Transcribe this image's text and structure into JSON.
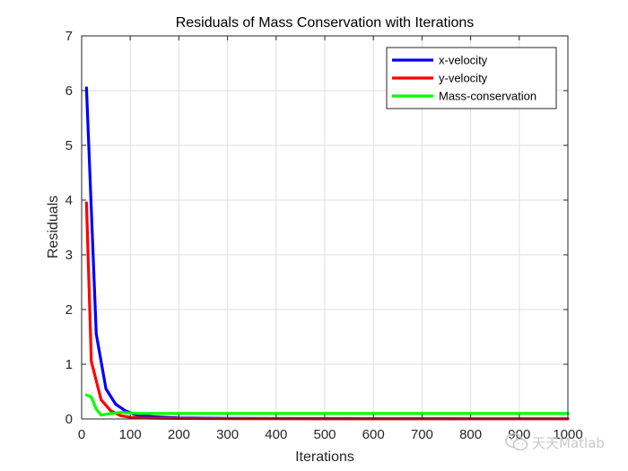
{
  "chart_data": {
    "type": "line",
    "title": "Residuals of Mass Conservation with Iterations",
    "xlabel": "Iterations",
    "ylabel": "Residuals",
    "xlim": [
      0,
      1000
    ],
    "ylim": [
      0,
      7
    ],
    "xticks": [
      0,
      100,
      200,
      300,
      400,
      500,
      600,
      700,
      800,
      900,
      1000
    ],
    "yticks": [
      0,
      1,
      2,
      3,
      4,
      5,
      6,
      7
    ],
    "grid": true,
    "legend_position": "top-right",
    "series": [
      {
        "name": "x-velocity",
        "color": "#0000ff",
        "x": [
          10,
          30,
          50,
          70,
          90,
          110,
          130,
          150,
          200,
          250,
          300,
          400,
          500,
          600,
          700,
          800,
          900,
          1000
        ],
        "y": [
          6.05,
          1.55,
          0.55,
          0.27,
          0.15,
          0.08,
          0.05,
          0.04,
          0.02,
          0.015,
          0.01,
          0.008,
          0.006,
          0.005,
          0.005,
          0.004,
          0.004,
          0.004
        ]
      },
      {
        "name": "y-velocity",
        "color": "#ff0000",
        "x": [
          10,
          20,
          40,
          60,
          80,
          100,
          120,
          150,
          200,
          250,
          300,
          400,
          500,
          600,
          700,
          800,
          900,
          1000
        ],
        "y": [
          3.95,
          1.05,
          0.35,
          0.15,
          0.06,
          0.03,
          0.02,
          0.015,
          0.01,
          0.008,
          0.006,
          0.005,
          0.004,
          0.004,
          0.004,
          0.004,
          0.004,
          0.004
        ]
      },
      {
        "name": "Mass-conservation",
        "color": "#00ff00",
        "x": [
          10,
          20,
          30,
          40,
          60,
          80,
          100,
          120,
          150,
          200,
          300,
          400,
          500,
          600,
          700,
          800,
          900,
          1000
        ],
        "y": [
          0.44,
          0.4,
          0.18,
          0.07,
          0.1,
          0.12,
          0.11,
          0.1,
          0.1,
          0.1,
          0.1,
          0.1,
          0.1,
          0.1,
          0.1,
          0.1,
          0.1,
          0.1
        ]
      }
    ]
  },
  "watermark": {
    "text": "天天Matlab",
    "icon": "wechat-icon"
  }
}
